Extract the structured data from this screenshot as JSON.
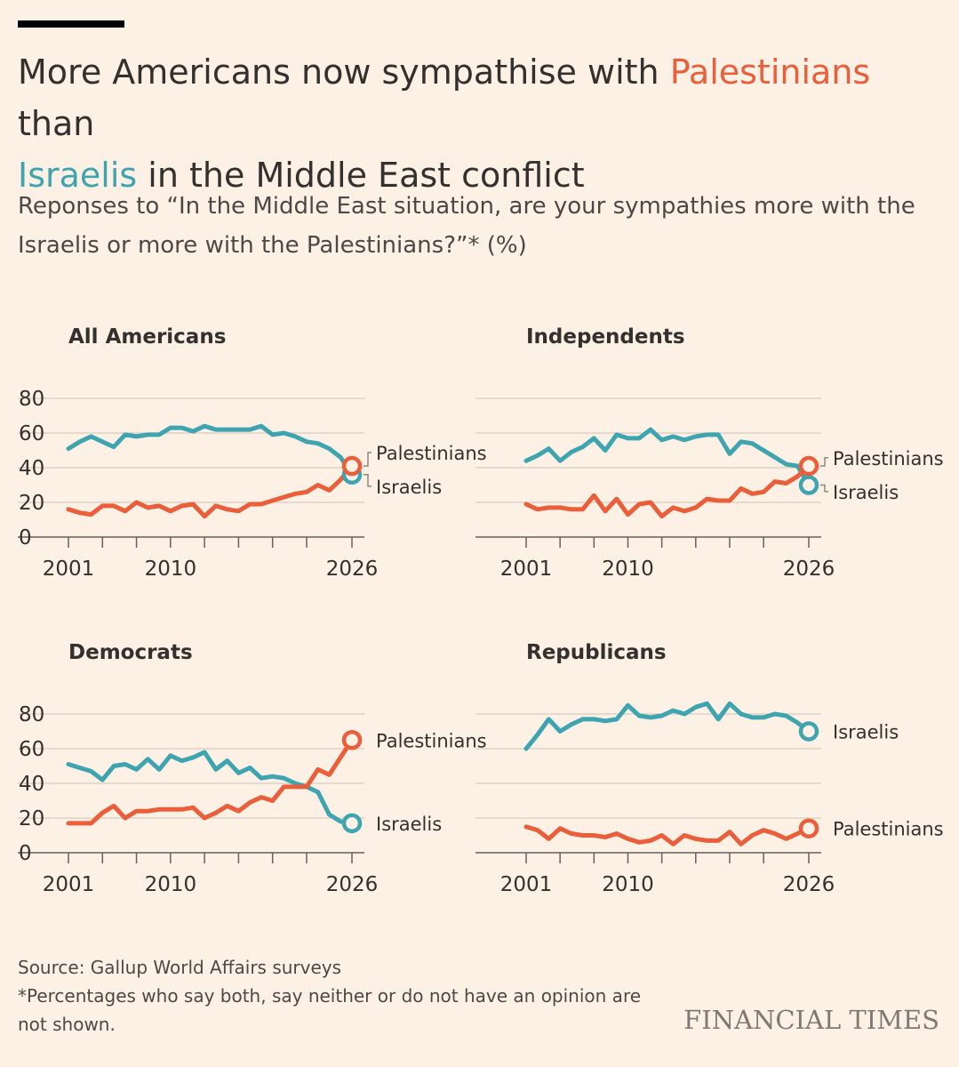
{
  "title": {
    "before": "More Americans now sympathise with ",
    "palestinians": "Palestinians",
    "middle": " than ",
    "israelis": "Israelis",
    "after": " in the Middle East conflict"
  },
  "subtitle": "Reponses to “In the Middle East situation, are your sympathies more with the Israelis or more with the Palestinians?”* (%)",
  "source": "Source: Gallup World Affairs surveys",
  "footnote": "*Percentages who say both, say neither or do not have an opinion are not shown.",
  "logo": "FINANCIAL TIMES",
  "colors": {
    "palestinians": "#eb5e3a",
    "israelis": "#3ea4b0"
  },
  "chart_data": [
    {
      "type": "line",
      "panel_title": "All Americans",
      "x_ticks": [
        "2001",
        "2010",
        "2026"
      ],
      "y_ticks": [
        "0",
        "20",
        "40",
        "60",
        "80"
      ],
      "ylim": [
        0,
        80
      ],
      "xlim": [
        2001,
        2026
      ],
      "series": [
        {
          "name": "Israelis",
          "x": [
            2001,
            2002,
            2003,
            2004,
            2005,
            2006,
            2007,
            2008,
            2009,
            2010,
            2011,
            2012,
            2013,
            2014,
            2015,
            2016,
            2017,
            2018,
            2019,
            2020,
            2021,
            2022,
            2023,
            2024,
            2025,
            2026
          ],
          "values": [
            51,
            55,
            58,
            55,
            52,
            59,
            58,
            59,
            59,
            63,
            63,
            61,
            64,
            62,
            62,
            62,
            62,
            64,
            59,
            60,
            58,
            55,
            54,
            51,
            46,
            36
          ]
        },
        {
          "name": "Palestinians",
          "x": [
            2001,
            2002,
            2003,
            2004,
            2005,
            2006,
            2007,
            2008,
            2009,
            2010,
            2011,
            2012,
            2013,
            2014,
            2015,
            2016,
            2017,
            2018,
            2019,
            2020,
            2021,
            2022,
            2023,
            2024,
            2025,
            2026
          ],
          "values": [
            16,
            14,
            13,
            18,
            18,
            15,
            20,
            17,
            18,
            15,
            18,
            19,
            12,
            18,
            16,
            15,
            19,
            19,
            21,
            23,
            25,
            26,
            30,
            27,
            33,
            41
          ]
        }
      ]
    },
    {
      "type": "line",
      "panel_title": "Independents",
      "x_ticks": [
        "2001",
        "2010",
        "2026"
      ],
      "y_ticks": [],
      "ylim": [
        0,
        80
      ],
      "xlim": [
        2001,
        2026
      ],
      "series": [
        {
          "name": "Israelis",
          "x": [
            2001,
            2002,
            2003,
            2004,
            2005,
            2006,
            2007,
            2008,
            2009,
            2010,
            2011,
            2012,
            2013,
            2014,
            2015,
            2016,
            2017,
            2018,
            2019,
            2020,
            2021,
            2022,
            2023,
            2024,
            2025,
            2026
          ],
          "values": [
            44,
            47,
            51,
            44,
            49,
            52,
            57,
            50,
            59,
            57,
            57,
            62,
            56,
            58,
            56,
            58,
            59,
            59,
            48,
            55,
            54,
            50,
            46,
            42,
            41,
            30
          ]
        },
        {
          "name": "Palestinians",
          "x": [
            2001,
            2002,
            2003,
            2004,
            2005,
            2006,
            2007,
            2008,
            2009,
            2010,
            2011,
            2012,
            2013,
            2014,
            2015,
            2016,
            2017,
            2018,
            2019,
            2020,
            2021,
            2022,
            2023,
            2024,
            2025,
            2026
          ],
          "values": [
            19,
            16,
            17,
            17,
            16,
            16,
            24,
            15,
            22,
            13,
            19,
            20,
            12,
            17,
            15,
            17,
            22,
            21,
            21,
            28,
            25,
            26,
            32,
            31,
            35,
            41
          ]
        }
      ]
    },
    {
      "type": "line",
      "panel_title": "Democrats",
      "x_ticks": [
        "2001",
        "2010",
        "2026"
      ],
      "y_ticks": [
        "0",
        "20",
        "40",
        "60",
        "80"
      ],
      "ylim": [
        0,
        80
      ],
      "xlim": [
        2001,
        2026
      ],
      "series": [
        {
          "name": "Israelis",
          "x": [
            2001,
            2002,
            2003,
            2004,
            2005,
            2006,
            2007,
            2008,
            2009,
            2010,
            2011,
            2012,
            2013,
            2014,
            2015,
            2016,
            2017,
            2018,
            2019,
            2020,
            2021,
            2022,
            2023,
            2024,
            2025,
            2026
          ],
          "values": [
            51,
            49,
            47,
            42,
            50,
            51,
            48,
            54,
            48,
            56,
            53,
            55,
            58,
            48,
            53,
            46,
            49,
            43,
            44,
            43,
            40,
            38,
            35,
            22,
            18,
            17
          ]
        },
        {
          "name": "Palestinians",
          "x": [
            2001,
            2002,
            2003,
            2004,
            2005,
            2006,
            2007,
            2008,
            2009,
            2010,
            2011,
            2012,
            2013,
            2014,
            2015,
            2016,
            2017,
            2018,
            2019,
            2020,
            2021,
            2022,
            2023,
            2024,
            2025,
            2026
          ],
          "values": [
            17,
            17,
            17,
            23,
            27,
            20,
            24,
            24,
            25,
            25,
            25,
            26,
            20,
            23,
            27,
            24,
            29,
            32,
            30,
            38,
            38,
            38,
            48,
            45,
            55,
            65
          ]
        }
      ]
    },
    {
      "type": "line",
      "panel_title": "Republicans",
      "x_ticks": [
        "2001",
        "2010",
        "2026"
      ],
      "y_ticks": [],
      "ylim": [
        0,
        80
      ],
      "xlim": [
        2001,
        2026
      ],
      "series": [
        {
          "name": "Israelis",
          "x": [
            2001,
            2002,
            2003,
            2004,
            2005,
            2006,
            2007,
            2008,
            2009,
            2010,
            2011,
            2012,
            2013,
            2014,
            2015,
            2016,
            2017,
            2018,
            2019,
            2020,
            2021,
            2022,
            2023,
            2024,
            2025,
            2026
          ],
          "values": [
            60,
            68,
            77,
            70,
            74,
            77,
            77,
            76,
            77,
            85,
            79,
            78,
            79,
            82,
            80,
            84,
            86,
            77,
            86,
            80,
            78,
            78,
            80,
            79,
            75,
            70
          ]
        },
        {
          "name": "Palestinians",
          "x": [
            2001,
            2002,
            2003,
            2004,
            2005,
            2006,
            2007,
            2008,
            2009,
            2010,
            2011,
            2012,
            2013,
            2014,
            2015,
            2016,
            2017,
            2018,
            2019,
            2020,
            2021,
            2022,
            2023,
            2024,
            2025,
            2026
          ],
          "values": [
            15,
            13,
            8,
            14,
            11,
            10,
            10,
            9,
            11,
            8,
            6,
            7,
            10,
            5,
            10,
            8,
            7,
            7,
            12,
            5,
            10,
            13,
            11,
            8,
            11,
            14
          ]
        }
      ]
    }
  ]
}
